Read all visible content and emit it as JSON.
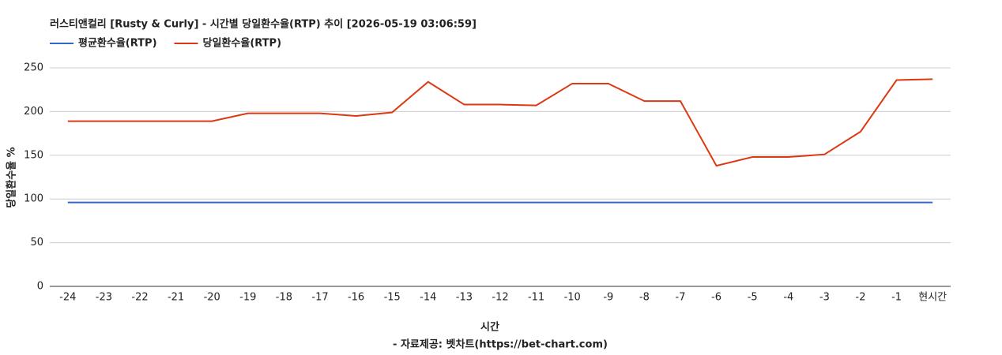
{
  "chart_data": {
    "type": "line",
    "title": "러스티앤컬리 [Rusty & Curly] - 시간별 당일환수율(RTP) 추이 [2026-05-19 03:06:59]",
    "x_label": "시간",
    "source": "- 자료제공: 벳차트(https://bet-chart.com)",
    "y_label": "당일환수율 %",
    "categories": [
      "-24",
      "-23",
      "-22",
      "-21",
      "-20",
      "-19",
      "-18",
      "-17",
      "-16",
      "-15",
      "-14",
      "-13",
      "-12",
      "-11",
      "-10",
      "-9",
      "-8",
      "-7",
      "-6",
      "-5",
      "-4",
      "-3",
      "-2",
      "-1",
      "현시간"
    ],
    "series": [
      {
        "name": "평균환수율(RTP)",
        "color": "#3366cc",
        "values": [
          96,
          96,
          96,
          96,
          96,
          96,
          96,
          96,
          96,
          96,
          96,
          96,
          96,
          96,
          96,
          96,
          96,
          96,
          96,
          96,
          96,
          96,
          96,
          96,
          96
        ]
      },
      {
        "name": "당일환수율(RTP)",
        "color": "#dc3912",
        "values": [
          189,
          189,
          189,
          189,
          189,
          198,
          198,
          198,
          195,
          199,
          234,
          208,
          208,
          207,
          232,
          232,
          212,
          212,
          138,
          148,
          148,
          151,
          177,
          236,
          237
        ]
      }
    ],
    "ylim": [
      0,
      250
    ],
    "yticks": [
      0,
      50,
      100,
      150,
      200,
      250
    ],
    "grid": true
  }
}
